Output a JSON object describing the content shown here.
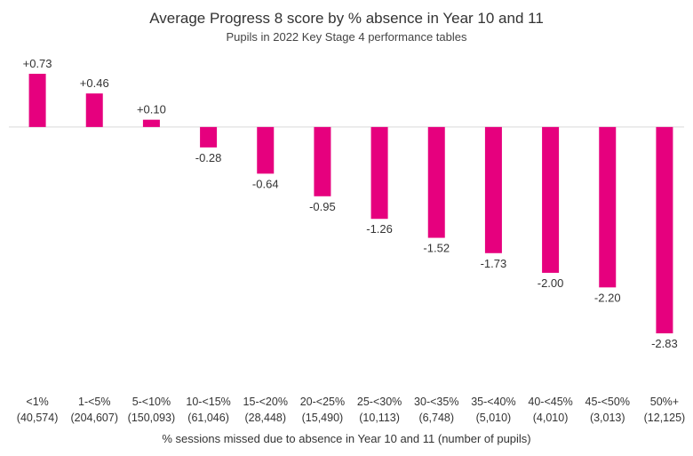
{
  "chart_data": {
    "type": "bar",
    "title": "Average Progress 8 score by % absence in Year 10 and 11",
    "subtitle": "Pupils in 2022 Key Stage 4 performance tables",
    "xlabel": "% sessions missed due to absence in Year 10 and 11 (number of pupils)",
    "ylabel": "",
    "ylim": [
      -2.83,
      0.73
    ],
    "grid": false,
    "bar_color": "#e6007e",
    "axis_color": "#d9d9d9",
    "categories": [
      "<1%",
      "1-<5%",
      "5-<10%",
      "10-<15%",
      "15-<20%",
      "20-<25%",
      "25-<30%",
      "30-<35%",
      "35-<40%",
      "40-<45%",
      "45-<50%",
      "50%+"
    ],
    "pupil_counts": [
      "(40,574)",
      "(204,607)",
      "(150,093)",
      "(61,046)",
      "(28,448)",
      "(15,490)",
      "(10,113)",
      "(6,748)",
      "(5,010)",
      "(4,010)",
      "(3,013)",
      "(12,125)"
    ],
    "values": [
      0.73,
      0.46,
      0.1,
      -0.28,
      -0.64,
      -0.95,
      -1.26,
      -1.52,
      -1.73,
      -2.0,
      -2.2,
      -2.83
    ],
    "value_labels": [
      "+0.73",
      "+0.46",
      "+0.10",
      "-0.28",
      "-0.64",
      "-0.95",
      "-1.26",
      "-1.52",
      "-1.73",
      "-2.00",
      "-2.20",
      "-2.83"
    ]
  }
}
